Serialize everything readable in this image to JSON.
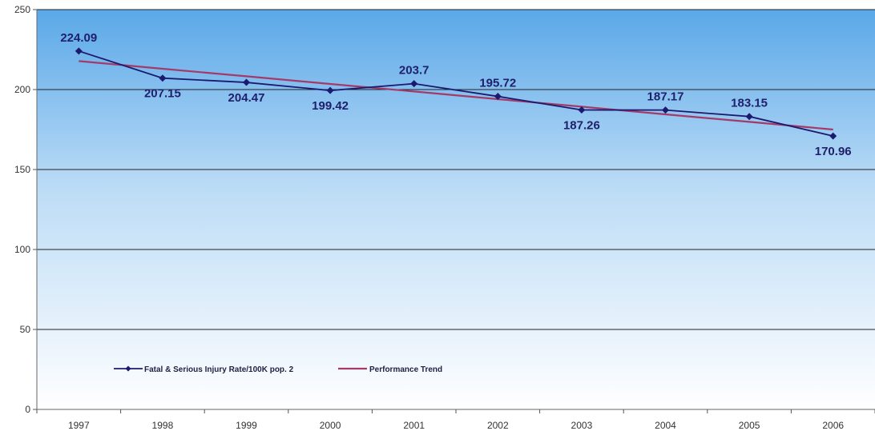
{
  "chart_data": {
    "type": "line",
    "title": "",
    "xlabel": "",
    "ylabel": "",
    "categories": [
      "1997",
      "1998",
      "1999",
      "2000",
      "2001",
      "2002",
      "2003",
      "2004",
      "2005",
      "2006"
    ],
    "ylim": [
      0,
      250
    ],
    "yticks": [
      0,
      50,
      100,
      150,
      200,
      250
    ],
    "grid": "horizontal",
    "legend_position": "bottom-left",
    "series": [
      {
        "name": "Fatal & Serious Injury Rate/100K pop. 2",
        "color": "#1c1a6e",
        "marker": "diamond",
        "values": [
          224.09,
          207.15,
          204.47,
          199.42,
          203.7,
          195.72,
          187.26,
          187.17,
          183.15,
          170.96
        ],
        "labels": [
          "224.09",
          "207.15",
          "204.47",
          "199.42",
          "203.7",
          "195.72",
          "187.26",
          "187.17",
          "183.15",
          "170.96"
        ]
      },
      {
        "name": "Performance Trend",
        "color": "#a33a6a",
        "marker": "none",
        "values": [
          217.8,
          213.0,
          208.3,
          203.5,
          198.8,
          194.0,
          189.3,
          184.5,
          179.8,
          175.0
        ]
      }
    ],
    "background_gradient": [
      "#5aa8e8",
      "#ffffff"
    ]
  }
}
